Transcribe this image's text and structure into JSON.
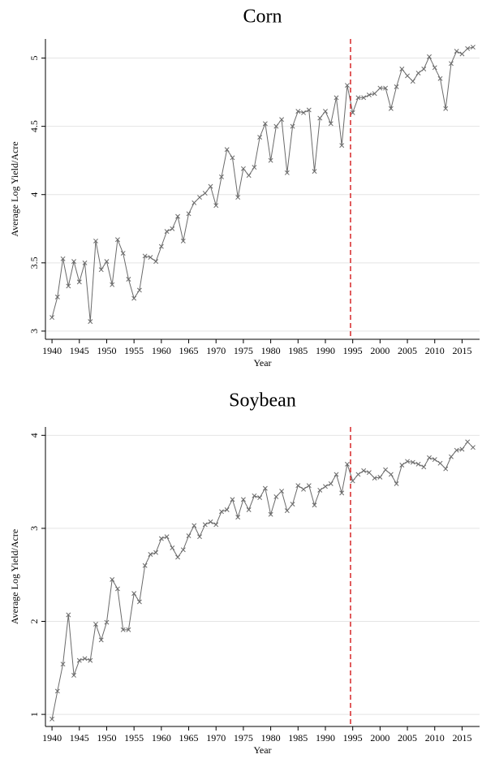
{
  "chart_data": [
    {
      "type": "line",
      "title": "Corn",
      "x_label": "Year",
      "y_label": "Average Log Yield/Acre",
      "color": "#6a6a6a",
      "marker": "x",
      "grid": true,
      "vline": 1994.6,
      "vline_color": "#d62728",
      "x": [
        1940,
        1941,
        1942,
        1943,
        1944,
        1945,
        1946,
        1947,
        1948,
        1949,
        1950,
        1951,
        1952,
        1953,
        1954,
        1955,
        1956,
        1957,
        1958,
        1959,
        1960,
        1961,
        1962,
        1963,
        1964,
        1965,
        1966,
        1967,
        1968,
        1969,
        1970,
        1971,
        1972,
        1973,
        1974,
        1975,
        1976,
        1977,
        1978,
        1979,
        1980,
        1981,
        1982,
        1983,
        1984,
        1985,
        1986,
        1987,
        1988,
        1989,
        1990,
        1991,
        1992,
        1993,
        1994,
        1995,
        1996,
        1997,
        1998,
        1999,
        2000,
        2001,
        2002,
        2003,
        2004,
        2005,
        2006,
        2007,
        2008,
        2009,
        2010,
        2011,
        2012,
        2013,
        2014,
        2015,
        2016,
        2017
      ],
      "values": [
        3.1,
        3.25,
        3.53,
        3.33,
        3.51,
        3.36,
        3.5,
        3.07,
        3.66,
        3.45,
        3.51,
        3.34,
        3.67,
        3.57,
        3.38,
        3.24,
        3.3,
        3.55,
        3.54,
        3.51,
        3.62,
        3.73,
        3.75,
        3.84,
        3.66,
        3.86,
        3.94,
        3.98,
        4.01,
        4.06,
        3.92,
        4.13,
        4.33,
        4.27,
        3.98,
        4.19,
        4.14,
        4.2,
        4.42,
        4.52,
        4.25,
        4.5,
        4.55,
        4.16,
        4.5,
        4.61,
        4.6,
        4.62,
        4.17,
        4.56,
        4.61,
        4.52,
        4.71,
        4.36,
        4.8,
        4.6,
        4.71,
        4.71,
        4.73,
        4.74,
        4.78,
        4.78,
        4.63,
        4.79,
        4.92,
        4.87,
        4.83,
        4.89,
        4.92,
        5.01,
        4.93,
        4.85,
        4.63,
        4.96,
        5.05,
        5.03,
        5.07,
        5.08
      ],
      "xlim": [
        1938.8,
        2018.2
      ],
      "xticks": [
        1940,
        1945,
        1950,
        1955,
        1960,
        1965,
        1970,
        1975,
        1980,
        1985,
        1990,
        1995,
        2000,
        2005,
        2010,
        2015
      ],
      "ylim": [
        2.94,
        5.14
      ],
      "yticks": [
        3,
        3.5,
        4,
        4.5,
        5
      ]
    },
    {
      "type": "line",
      "title": "Soybean",
      "x_label": "Year",
      "y_label": "Average Log Yield/Acre",
      "color": "#6a6a6a",
      "marker": "x",
      "grid": true,
      "vline": 1994.6,
      "vline_color": "#d62728",
      "x": [
        1940,
        1941,
        1942,
        1943,
        1944,
        1945,
        1946,
        1947,
        1948,
        1949,
        1950,
        1951,
        1952,
        1953,
        1954,
        1955,
        1956,
        1957,
        1958,
        1959,
        1960,
        1961,
        1962,
        1963,
        1964,
        1965,
        1966,
        1967,
        1968,
        1969,
        1970,
        1971,
        1972,
        1973,
        1974,
        1975,
        1976,
        1977,
        1978,
        1979,
        1980,
        1981,
        1982,
        1983,
        1984,
        1985,
        1986,
        1987,
        1988,
        1989,
        1990,
        1991,
        1992,
        1993,
        1994,
        1995,
        1996,
        1997,
        1998,
        1999,
        2000,
        2001,
        2002,
        2003,
        2004,
        2005,
        2006,
        2007,
        2008,
        2009,
        2010,
        2011,
        2012,
        2013,
        2014,
        2015,
        2016,
        2017
      ],
      "values": [
        0.95,
        1.25,
        1.54,
        2.07,
        1.42,
        1.58,
        1.6,
        1.58,
        1.97,
        1.8,
        1.99,
        2.45,
        2.35,
        1.91,
        1.91,
        2.3,
        2.21,
        2.6,
        2.72,
        2.74,
        2.89,
        2.91,
        2.79,
        2.69,
        2.77,
        2.92,
        3.03,
        2.91,
        3.04,
        3.07,
        3.04,
        3.18,
        3.2,
        3.31,
        3.12,
        3.31,
        3.2,
        3.35,
        3.33,
        3.43,
        3.15,
        3.34,
        3.4,
        3.19,
        3.26,
        3.46,
        3.42,
        3.46,
        3.25,
        3.41,
        3.45,
        3.48,
        3.58,
        3.38,
        3.69,
        3.51,
        3.58,
        3.62,
        3.6,
        3.54,
        3.55,
        3.63,
        3.58,
        3.48,
        3.68,
        3.72,
        3.71,
        3.69,
        3.66,
        3.76,
        3.74,
        3.7,
        3.64,
        3.77,
        3.84,
        3.85,
        3.93,
        3.87
      ],
      "xlim": [
        1938.8,
        2018.2
      ],
      "xticks": [
        1940,
        1945,
        1950,
        1955,
        1960,
        1965,
        1970,
        1975,
        1980,
        1985,
        1990,
        1995,
        2000,
        2005,
        2010,
        2015
      ],
      "ylim": [
        0.87,
        4.09
      ],
      "yticks": [
        1,
        2,
        3,
        4
      ]
    }
  ]
}
